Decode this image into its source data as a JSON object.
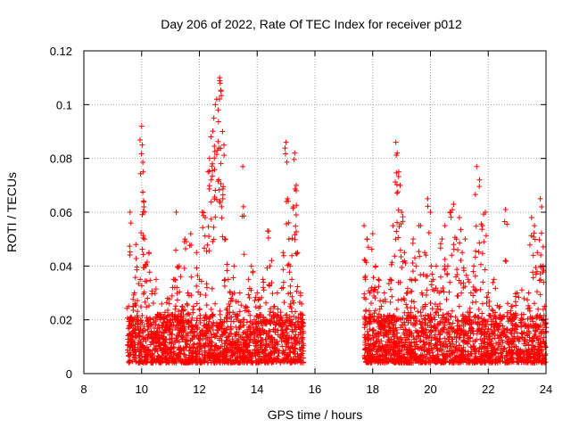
{
  "chart_data": {
    "type": "scatter",
    "title": "Day 206 of 2022, Rate Of TEC Index for receiver p012",
    "xlabel": "GPS time / hours",
    "ylabel": "ROTI / TECUs",
    "xlim": [
      8,
      24
    ],
    "ylim": [
      0,
      0.12
    ],
    "xticks": [
      8,
      10,
      12,
      14,
      16,
      18,
      20,
      22,
      24
    ],
    "xtick_labels": [
      "8",
      "10",
      "12",
      "14",
      "16",
      "18",
      "20",
      "22",
      "24"
    ],
    "yticks": [
      0,
      0.02,
      0.04,
      0.06,
      0.08,
      0.1,
      0.12
    ],
    "ytick_labels": [
      "0",
      "0.02",
      "0.04",
      "0.06",
      "0.08",
      "0.1",
      "0.12"
    ],
    "grid": true,
    "marker": "+",
    "color": "#ff0000",
    "series": [
      {
        "name": "ROTI",
        "points": [
          [
            9.55,
            0.025
          ],
          [
            9.6,
            0.06
          ],
          [
            9.65,
            0.018
          ],
          [
            9.7,
            0.012
          ],
          [
            9.75,
            0.03
          ],
          [
            9.8,
            0.048
          ],
          [
            9.85,
            0.02
          ],
          [
            9.9,
            0.015
          ],
          [
            9.95,
            0.035
          ],
          [
            10.0,
            0.092
          ],
          [
            10.02,
            0.085
          ],
          [
            10.05,
            0.075
          ],
          [
            10.08,
            0.062
          ],
          [
            10.1,
            0.05
          ],
          [
            10.15,
            0.04
          ],
          [
            10.2,
            0.028
          ],
          [
            10.25,
            0.045
          ],
          [
            10.3,
            0.02
          ],
          [
            10.4,
            0.015
          ],
          [
            10.5,
            0.035
          ],
          [
            10.6,
            0.022
          ],
          [
            10.7,
            0.018
          ],
          [
            10.8,
            0.012
          ],
          [
            10.9,
            0.028
          ],
          [
            11.0,
            0.02
          ],
          [
            11.1,
            0.035
          ],
          [
            11.2,
            0.06
          ],
          [
            11.3,
            0.04
          ],
          [
            11.4,
            0.025
          ],
          [
            11.5,
            0.05
          ],
          [
            11.6,
            0.03
          ],
          [
            11.7,
            0.052
          ],
          [
            11.8,
            0.025
          ],
          [
            11.9,
            0.045
          ],
          [
            12.0,
            0.035
          ],
          [
            12.1,
            0.06
          ],
          [
            12.2,
            0.058
          ],
          [
            12.3,
            0.075
          ],
          [
            12.35,
            0.08
          ],
          [
            12.4,
            0.088
          ],
          [
            12.45,
            0.078
          ],
          [
            12.5,
            0.095
          ],
          [
            12.55,
            0.1
          ],
          [
            12.6,
            0.102
          ],
          [
            12.65,
            0.098
          ],
          [
            12.7,
            0.11
          ],
          [
            12.72,
            0.108
          ],
          [
            12.75,
            0.105
          ],
          [
            12.8,
            0.09
          ],
          [
            12.85,
            0.085
          ],
          [
            12.9,
            0.05
          ],
          [
            13.0,
            0.035
          ],
          [
            13.1,
            0.028
          ],
          [
            13.2,
            0.04
          ],
          [
            13.3,
            0.022
          ],
          [
            13.4,
            0.03
          ],
          [
            13.5,
            0.077
          ],
          [
            13.6,
            0.025
          ],
          [
            13.7,
            0.035
          ],
          [
            13.8,
            0.04
          ],
          [
            13.9,
            0.02
          ],
          [
            14.0,
            0.03
          ],
          [
            14.1,
            0.025
          ],
          [
            14.2,
            0.035
          ],
          [
            14.3,
            0.02
          ],
          [
            14.4,
            0.053
          ],
          [
            14.5,
            0.042
          ],
          [
            14.6,
            0.025
          ],
          [
            14.7,
            0.03
          ],
          [
            14.8,
            0.02
          ],
          [
            14.9,
            0.045
          ],
          [
            15.0,
            0.086
          ],
          [
            15.05,
            0.065
          ],
          [
            15.1,
            0.05
          ],
          [
            15.15,
            0.03
          ],
          [
            15.2,
            0.035
          ],
          [
            15.25,
            0.062
          ],
          [
            15.3,
            0.082
          ],
          [
            15.35,
            0.07
          ],
          [
            15.4,
            0.045
          ],
          [
            15.5,
            0.03
          ],
          [
            15.55,
            0.02
          ],
          [
            15.6,
            0.015
          ],
          [
            17.7,
            0.055
          ],
          [
            17.75,
            0.035
          ],
          [
            17.8,
            0.05
          ],
          [
            17.9,
            0.03
          ],
          [
            18.0,
            0.052
          ],
          [
            18.1,
            0.04
          ],
          [
            18.2,
            0.035
          ],
          [
            18.3,
            0.025
          ],
          [
            18.4,
            0.03
          ],
          [
            18.5,
            0.02
          ],
          [
            18.6,
            0.035
          ],
          [
            18.7,
            0.055
          ],
          [
            18.8,
            0.086
          ],
          [
            18.85,
            0.082
          ],
          [
            18.9,
            0.075
          ],
          [
            18.95,
            0.07
          ],
          [
            19.0,
            0.06
          ],
          [
            19.1,
            0.045
          ],
          [
            19.2,
            0.03
          ],
          [
            19.3,
            0.035
          ],
          [
            19.4,
            0.05
          ],
          [
            19.5,
            0.04
          ],
          [
            19.6,
            0.055
          ],
          [
            19.7,
            0.03
          ],
          [
            19.8,
            0.045
          ],
          [
            19.9,
            0.065
          ],
          [
            20.0,
            0.06
          ],
          [
            20.1,
            0.035
          ],
          [
            20.2,
            0.04
          ],
          [
            20.3,
            0.03
          ],
          [
            20.4,
            0.05
          ],
          [
            20.5,
            0.055
          ],
          [
            20.6,
            0.04
          ],
          [
            20.7,
            0.06
          ],
          [
            20.8,
            0.063
          ],
          [
            20.9,
            0.05
          ],
          [
            21.0,
            0.058
          ],
          [
            21.1,
            0.045
          ],
          [
            21.2,
            0.05
          ],
          [
            21.3,
            0.035
          ],
          [
            21.4,
            0.03
          ],
          [
            21.5,
            0.04
          ],
          [
            21.6,
            0.077
          ],
          [
            21.7,
            0.072
          ],
          [
            21.8,
            0.055
          ],
          [
            21.9,
            0.06
          ],
          [
            22.0,
            0.03
          ],
          [
            22.2,
            0.035
          ],
          [
            22.4,
            0.025
          ],
          [
            22.6,
            0.061
          ],
          [
            22.8,
            0.025
          ],
          [
            23.0,
            0.03
          ],
          [
            23.2,
            0.02
          ],
          [
            23.4,
            0.03
          ],
          [
            23.5,
            0.058
          ],
          [
            23.6,
            0.055
          ],
          [
            23.7,
            0.045
          ],
          [
            23.8,
            0.065
          ],
          [
            23.85,
            0.062
          ],
          [
            23.9,
            0.04
          ],
          [
            23.95,
            0.025
          ]
        ],
        "dense_bands": [
          {
            "x_range": [
              9.5,
              15.6
            ],
            "y_range": [
              0.004,
              0.022
            ]
          },
          {
            "x_range": [
              17.7,
              24.0
            ],
            "y_range": [
              0.004,
              0.022
            ]
          }
        ]
      }
    ]
  }
}
